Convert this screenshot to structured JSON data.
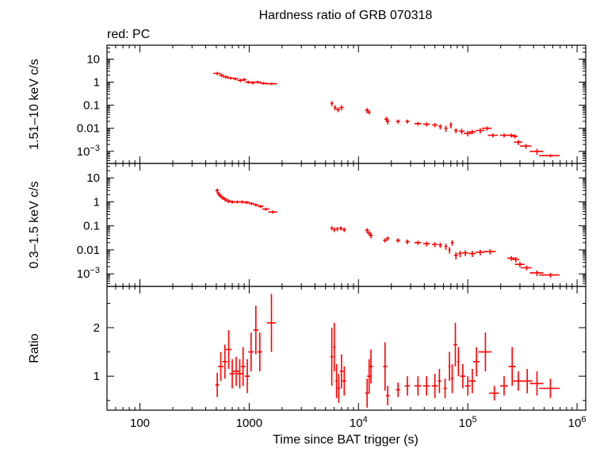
{
  "chart_data": {
    "type": "scatter",
    "title": "Hardness ratio of GRB 070318",
    "legend": "red: PC",
    "xlabel": "Time since BAT trigger (s)",
    "xscale": "log",
    "xlim": [
      50,
      1200000
    ],
    "x_tick_labels": [
      {
        "value": 100,
        "label": "100"
      },
      {
        "value": 1000,
        "label": "1000"
      },
      {
        "value": 10000,
        "base": "10",
        "exp": "4"
      },
      {
        "value": 100000,
        "base": "10",
        "exp": "5"
      },
      {
        "value": 1000000,
        "base": "10",
        "exp": "6"
      }
    ],
    "series_color": "#ff0000",
    "panels": [
      {
        "name": "hard",
        "ylabel": "1.51–10 keV c/s",
        "yscale": "log",
        "ylim": [
          0.0003,
          40
        ],
        "y_tick_labels": [
          {
            "value": 10,
            "label": "10"
          },
          {
            "value": 1,
            "label": "1"
          },
          {
            "value": 0.1,
            "label": "0.1"
          },
          {
            "value": 0.01,
            "label": "0.01"
          },
          {
            "value": 0.001,
            "base": "10",
            "exp": "−3"
          }
        ],
        "points": [
          [
            510,
            2.4,
            40,
            0.4
          ],
          [
            560,
            2.0,
            30,
            0.3
          ],
          [
            610,
            1.7,
            40,
            0.25
          ],
          [
            680,
            1.5,
            50,
            0.2
          ],
          [
            750,
            1.4,
            40,
            0.2
          ],
          [
            830,
            1.2,
            50,
            0.2
          ],
          [
            900,
            1.3,
            40,
            0.2
          ],
          [
            980,
            1.0,
            60,
            0.15
          ],
          [
            1080,
            0.95,
            60,
            0.15
          ],
          [
            1200,
            1.0,
            80,
            0.15
          ],
          [
            1350,
            0.9,
            100,
            0.12
          ],
          [
            1600,
            0.85,
            200,
            0.1
          ],
          [
            5700,
            0.12,
            150,
            0.03
          ],
          [
            6100,
            0.08,
            200,
            0.02
          ],
          [
            6500,
            0.065,
            250,
            0.015
          ],
          [
            7000,
            0.08,
            300,
            0.02
          ],
          [
            12000,
            0.06,
            500,
            0.015
          ],
          [
            12500,
            0.05,
            400,
            0.01
          ],
          [
            18000,
            0.025,
            800,
            0.006
          ],
          [
            18500,
            0.02,
            600,
            0.005
          ],
          [
            23000,
            0.02,
            1000,
            0.004
          ],
          [
            28000,
            0.02,
            1200,
            0.004
          ],
          [
            35000,
            0.016,
            2500,
            0.003
          ],
          [
            42000,
            0.015,
            3000,
            0.003
          ],
          [
            50000,
            0.014,
            3000,
            0.003
          ],
          [
            56000,
            0.012,
            2000,
            0.003
          ],
          [
            63000,
            0.01,
            2000,
            0.003
          ],
          [
            70000,
            0.014,
            2000,
            0.004
          ],
          [
            78000,
            0.008,
            3000,
            0.002
          ],
          [
            88000,
            0.0075,
            5000,
            0.002
          ],
          [
            100000,
            0.006,
            8000,
            0.0015
          ],
          [
            110000,
            0.007,
            8000,
            0.0015
          ],
          [
            130000,
            0.008,
            12000,
            0.002
          ],
          [
            150000,
            0.01,
            15000,
            0.002
          ],
          [
            170000,
            0.005,
            18000,
            0.001
          ],
          [
            215000,
            0.005,
            18000,
            0.001
          ],
          [
            250000,
            0.005,
            20000,
            0.001
          ],
          [
            270000,
            0.0045,
            15000,
            0.0009
          ],
          [
            290000,
            0.0025,
            25000,
            0.0006
          ],
          [
            340000,
            0.0017,
            40000,
            0.0004
          ],
          [
            430000,
            0.001,
            60000,
            0.0003
          ],
          [
            570000,
            0.00065,
            120000,
            0.0001
          ]
        ]
      },
      {
        "name": "soft",
        "ylabel": "0.3–1.5 keV c/s",
        "yscale": "log",
        "ylim": [
          0.0003,
          40
        ],
        "y_tick_labels": [
          {
            "value": 10,
            "label": "10"
          },
          {
            "value": 1,
            "label": "1"
          },
          {
            "value": 0.1,
            "label": "0.1"
          },
          {
            "value": 0.01,
            "label": "0.01"
          },
          {
            "value": 0.001,
            "base": "10",
            "exp": "−3"
          }
        ],
        "points": [
          [
            510,
            3.0,
            20,
            0.6
          ],
          [
            525,
            2.2,
            20,
            0.4
          ],
          [
            545,
            1.8,
            20,
            0.3
          ],
          [
            570,
            1.5,
            25,
            0.25
          ],
          [
            600,
            1.3,
            30,
            0.2
          ],
          [
            640,
            1.1,
            40,
            0.2
          ],
          [
            700,
            1.0,
            50,
            0.15
          ],
          [
            780,
            1.0,
            60,
            0.15
          ],
          [
            860,
            1.0,
            60,
            0.15
          ],
          [
            950,
            0.95,
            60,
            0.15
          ],
          [
            1050,
            0.85,
            60,
            0.12
          ],
          [
            1150,
            0.75,
            60,
            0.1
          ],
          [
            1270,
            0.65,
            80,
            0.1
          ],
          [
            1420,
            0.5,
            100,
            0.08
          ],
          [
            1650,
            0.38,
            150,
            0.06
          ],
          [
            5700,
            0.08,
            150,
            0.015
          ],
          [
            6000,
            0.07,
            150,
            0.015
          ],
          [
            6400,
            0.075,
            200,
            0.015
          ],
          [
            6900,
            0.08,
            250,
            0.015
          ],
          [
            7400,
            0.07,
            300,
            0.015
          ],
          [
            12000,
            0.065,
            500,
            0.015
          ],
          [
            12500,
            0.05,
            500,
            0.01
          ],
          [
            13000,
            0.04,
            500,
            0.01
          ],
          [
            17500,
            0.025,
            700,
            0.005
          ],
          [
            18500,
            0.03,
            700,
            0.006
          ],
          [
            23000,
            0.025,
            1000,
            0.005
          ],
          [
            28000,
            0.022,
            1200,
            0.005
          ],
          [
            35000,
            0.02,
            2500,
            0.004
          ],
          [
            42000,
            0.018,
            3000,
            0.004
          ],
          [
            50000,
            0.017,
            3000,
            0.004
          ],
          [
            56000,
            0.016,
            2000,
            0.004
          ],
          [
            63000,
            0.014,
            2000,
            0.004
          ],
          [
            68000,
            0.01,
            1500,
            0.003
          ],
          [
            72000,
            0.02,
            2000,
            0.005
          ],
          [
            78000,
            0.006,
            3000,
            0.002
          ],
          [
            85000,
            0.007,
            3000,
            0.002
          ],
          [
            95000,
            0.0075,
            6000,
            0.002
          ],
          [
            110000,
            0.007,
            8000,
            0.002
          ],
          [
            130000,
            0.008,
            12000,
            0.002
          ],
          [
            160000,
            0.0085,
            20000,
            0.002
          ],
          [
            250000,
            0.0045,
            20000,
            0.001
          ],
          [
            275000,
            0.004,
            20000,
            0.001
          ],
          [
            300000,
            0.0025,
            30000,
            0.0006
          ],
          [
            345000,
            0.0018,
            40000,
            0.0004
          ],
          [
            430000,
            0.0011,
            60000,
            0.0003
          ],
          [
            570000,
            0.0009,
            120000,
            0.0002
          ]
        ]
      },
      {
        "name": "ratio",
        "ylabel": "Ratio",
        "yscale": "linear",
        "ylim": [
          0.3,
          2.85
        ],
        "y_tick_labels": [
          {
            "value": 2,
            "label": "2"
          },
          {
            "value": 1,
            "label": "1"
          }
        ],
        "y_minor_ticks": [
          0.5,
          1.5,
          2.5
        ],
        "points": [
          [
            510,
            0.82,
            20,
            0.25
          ],
          [
            550,
            1.2,
            30,
            0.3
          ],
          [
            600,
            1.3,
            30,
            0.35
          ],
          [
            650,
            1.55,
            40,
            0.4
          ],
          [
            700,
            1.05,
            40,
            0.3
          ],
          [
            760,
            1.1,
            50,
            0.3
          ],
          [
            820,
            1.05,
            50,
            0.3
          ],
          [
            880,
            1.2,
            40,
            0.4
          ],
          [
            960,
            1.0,
            50,
            0.35
          ],
          [
            1040,
            1.5,
            60,
            0.4
          ],
          [
            1150,
            1.95,
            60,
            0.5
          ],
          [
            1250,
            1.5,
            60,
            0.4
          ],
          [
            1600,
            2.1,
            150,
            0.6
          ],
          [
            5700,
            1.4,
            150,
            0.6
          ],
          [
            6000,
            1.6,
            150,
            0.5
          ],
          [
            6300,
            0.9,
            150,
            0.35
          ],
          [
            6600,
            0.75,
            200,
            0.3
          ],
          [
            7000,
            1.1,
            250,
            0.35
          ],
          [
            7400,
            0.9,
            300,
            0.3
          ],
          [
            12000,
            0.65,
            500,
            0.3
          ],
          [
            12500,
            1.0,
            500,
            0.35
          ],
          [
            13000,
            1.2,
            500,
            0.35
          ],
          [
            17500,
            1.2,
            700,
            0.5
          ],
          [
            18500,
            0.6,
            700,
            0.2
          ],
          [
            23000,
            0.72,
            1000,
            0.15
          ],
          [
            28000,
            0.8,
            1500,
            0.2
          ],
          [
            35000,
            0.8,
            2500,
            0.2
          ],
          [
            42000,
            0.8,
            3000,
            0.2
          ],
          [
            50000,
            0.8,
            3000,
            0.25
          ],
          [
            55000,
            0.9,
            2000,
            0.25
          ],
          [
            62000,
            0.75,
            2000,
            0.2
          ],
          [
            68000,
            1.2,
            1500,
            0.3
          ],
          [
            72000,
            0.95,
            2000,
            0.3
          ],
          [
            77000,
            1.65,
            3000,
            0.45
          ],
          [
            82000,
            1.3,
            2000,
            0.3
          ],
          [
            90000,
            1.0,
            5000,
            0.25
          ],
          [
            100000,
            0.8,
            6000,
            0.2
          ],
          [
            110000,
            0.9,
            8000,
            0.25
          ],
          [
            120000,
            1.3,
            8000,
            0.3
          ],
          [
            145000,
            1.5,
            20000,
            0.4
          ],
          [
            175000,
            0.65,
            18000,
            0.15
          ],
          [
            215000,
            0.8,
            18000,
            0.2
          ],
          [
            255000,
            1.2,
            20000,
            0.4
          ],
          [
            290000,
            0.9,
            30000,
            0.2
          ],
          [
            350000,
            0.9,
            40000,
            0.25
          ],
          [
            430000,
            0.85,
            60000,
            0.25
          ],
          [
            570000,
            0.75,
            120000,
            0.2
          ]
        ]
      }
    ]
  }
}
